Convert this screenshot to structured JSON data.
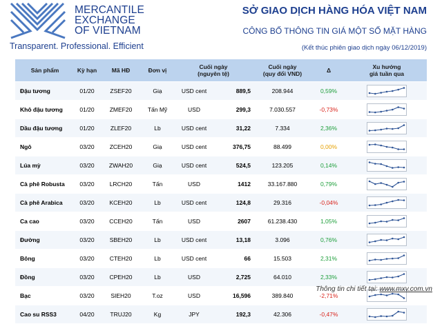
{
  "logo": {
    "lines": [
      "MERCANTILE",
      "EXCHANGE",
      "OF VIETNAM"
    ],
    "tagline": "Transparent. Professional. Efficient"
  },
  "header": {
    "title": "SỞ GIAO DỊCH HÀNG HÓA VIỆT NAM",
    "subtitle": "CÔNG BỐ THÔNG TIN GIÁ MỘT SỐ MẶT HÀNG",
    "date_note": "(Kết thúc phiên giao dịch ngày 06/12/2019)"
  },
  "colors": {
    "brand": "#1d3f8f",
    "header_bg": "#bcd3ee",
    "positive": "#1d9e3a",
    "negative": "#d9241c",
    "unchanged": "#e6a000"
  },
  "table": {
    "columns": {
      "product": "Sản phẩm",
      "term": "Kỳ hạn",
      "code": "Mã HĐ",
      "unit": "Đơn vị",
      "close_line1": "Cuối ngày",
      "close_line2": "(nguyên tệ)",
      "close_vnd_line1": "Cuối ngày",
      "close_vnd_line2": "(quy đổi VND)",
      "delta": "Δ",
      "trend_line1": "Xu hướng",
      "trend_line2": "giá tuần qua"
    },
    "rows": [
      {
        "product": "Đậu tương",
        "term": "01/20",
        "code": "ZSEF20",
        "unit": "Giạ",
        "currency": "USD cent",
        "close": "889,5",
        "vnd": "208.944",
        "change": "0,59%",
        "dir": "pos",
        "trend": [
          0.2,
          0.1,
          0.25,
          0.4,
          0.5,
          0.7,
          0.95
        ]
      },
      {
        "product": "Khô đậu tương",
        "term": "01/20",
        "code": "ZMEF20",
        "unit": "Tấn Mỹ",
        "currency": "USD",
        "close": "299,3",
        "vnd": "7.030.557",
        "change": "-0,73%",
        "dir": "neg",
        "trend": [
          0.15,
          0.1,
          0.2,
          0.35,
          0.5,
          0.85,
          0.65
        ]
      },
      {
        "product": "Dầu đậu tương",
        "term": "01/20",
        "code": "ZLEF20",
        "unit": "Lb",
        "currency": "USD cent",
        "close": "31,22",
        "vnd": "7.334",
        "change": "2,36%",
        "dir": "pos",
        "trend": [
          0.15,
          0.2,
          0.3,
          0.45,
          0.4,
          0.5,
          0.95
        ]
      },
      {
        "product": "Ngô",
        "term": "03/20",
        "code": "ZCEH20",
        "unit": "Giạ",
        "currency": "USD cent",
        "close": "376,75",
        "vnd": "88.499",
        "change": "0,00%",
        "dir": "zero",
        "trend": [
          0.8,
          0.85,
          0.7,
          0.5,
          0.4,
          0.15,
          0.15
        ]
      },
      {
        "product": "Lúa mỳ",
        "term": "03/20",
        "code": "ZWAH20",
        "unit": "Giạ",
        "currency": "USD cent",
        "close": "524,5",
        "vnd": "123.205",
        "change": "0,14%",
        "dir": "pos",
        "trend": [
          0.95,
          0.75,
          0.7,
          0.4,
          0.15,
          0.25,
          0.2
        ]
      },
      {
        "product": "Cà phê Robusta",
        "term": "03/20",
        "code": "LRCH20",
        "unit": "Tấn",
        "currency": "USD",
        "close": "1412",
        "vnd": "33.167.880",
        "change": "0,79%",
        "dir": "pos",
        "trend": [
          0.9,
          0.5,
          0.65,
          0.4,
          0.1,
          0.7,
          0.85
        ]
      },
      {
        "product": "Cà phê Arabica",
        "term": "03/20",
        "code": "KCEH20",
        "unit": "Lb",
        "currency": "USD cent",
        "close": "124,8",
        "vnd": "29.316",
        "change": "-0,04%",
        "dir": "neg",
        "trend": [
          0.1,
          0.15,
          0.25,
          0.5,
          0.7,
          0.9,
          0.85
        ]
      },
      {
        "product": "Ca cao",
        "term": "03/20",
        "code": "CCEH20",
        "unit": "Tấn",
        "currency": "USD",
        "close": "2607",
        "vnd": "61.238.430",
        "change": "1,05%",
        "dir": "pos",
        "trend": [
          0.2,
          0.3,
          0.5,
          0.45,
          0.7,
          0.65,
          0.95
        ]
      },
      {
        "product": "Đường",
        "term": "03/20",
        "code": "SBEH20",
        "unit": "Lb",
        "currency": "USD cent",
        "close": "13,18",
        "vnd": "3.096",
        "change": "0,76%",
        "dir": "pos",
        "trend": [
          0.15,
          0.3,
          0.5,
          0.45,
          0.7,
          0.6,
          0.9
        ]
      },
      {
        "product": "Bông",
        "term": "03/20",
        "code": "CTEH20",
        "unit": "Lb",
        "currency": "USD cent",
        "close": "66",
        "vnd": "15.503",
        "change": "2,31%",
        "dir": "pos",
        "trend": [
          0.2,
          0.35,
          0.3,
          0.45,
          0.5,
          0.55,
          0.95
        ]
      },
      {
        "product": "Đồng",
        "term": "03/20",
        "code": "CPEH20",
        "unit": "Lb",
        "currency": "USD",
        "close": "2,725",
        "vnd": "64.010",
        "change": "2,33%",
        "dir": "pos",
        "trend": [
          0.1,
          0.2,
          0.35,
          0.5,
          0.45,
          0.6,
          0.95
        ]
      },
      {
        "product": "Bạc",
        "term": "03/20",
        "code": "SIEH20",
        "unit": "T.oz",
        "currency": "USD",
        "close": "16,596",
        "vnd": "389.840",
        "change": "-2,71%",
        "dir": "neg",
        "trend": [
          0.4,
          0.6,
          0.7,
          0.55,
          0.8,
          0.7,
          0.15
        ]
      },
      {
        "product": "Cao su RSS3",
        "term": "04/20",
        "code": "TRUJ20",
        "unit": "Kg",
        "currency": "JPY",
        "close": "192,3",
        "vnd": "42.306",
        "change": "-0,47%",
        "dir": "neg",
        "trend": [
          0.2,
          0.1,
          0.25,
          0.2,
          0.3,
          0.9,
          0.75
        ]
      }
    ]
  },
  "footer": {
    "label": "Thông tin chi tiết tại:",
    "link": "www.mxv.com.vn"
  }
}
